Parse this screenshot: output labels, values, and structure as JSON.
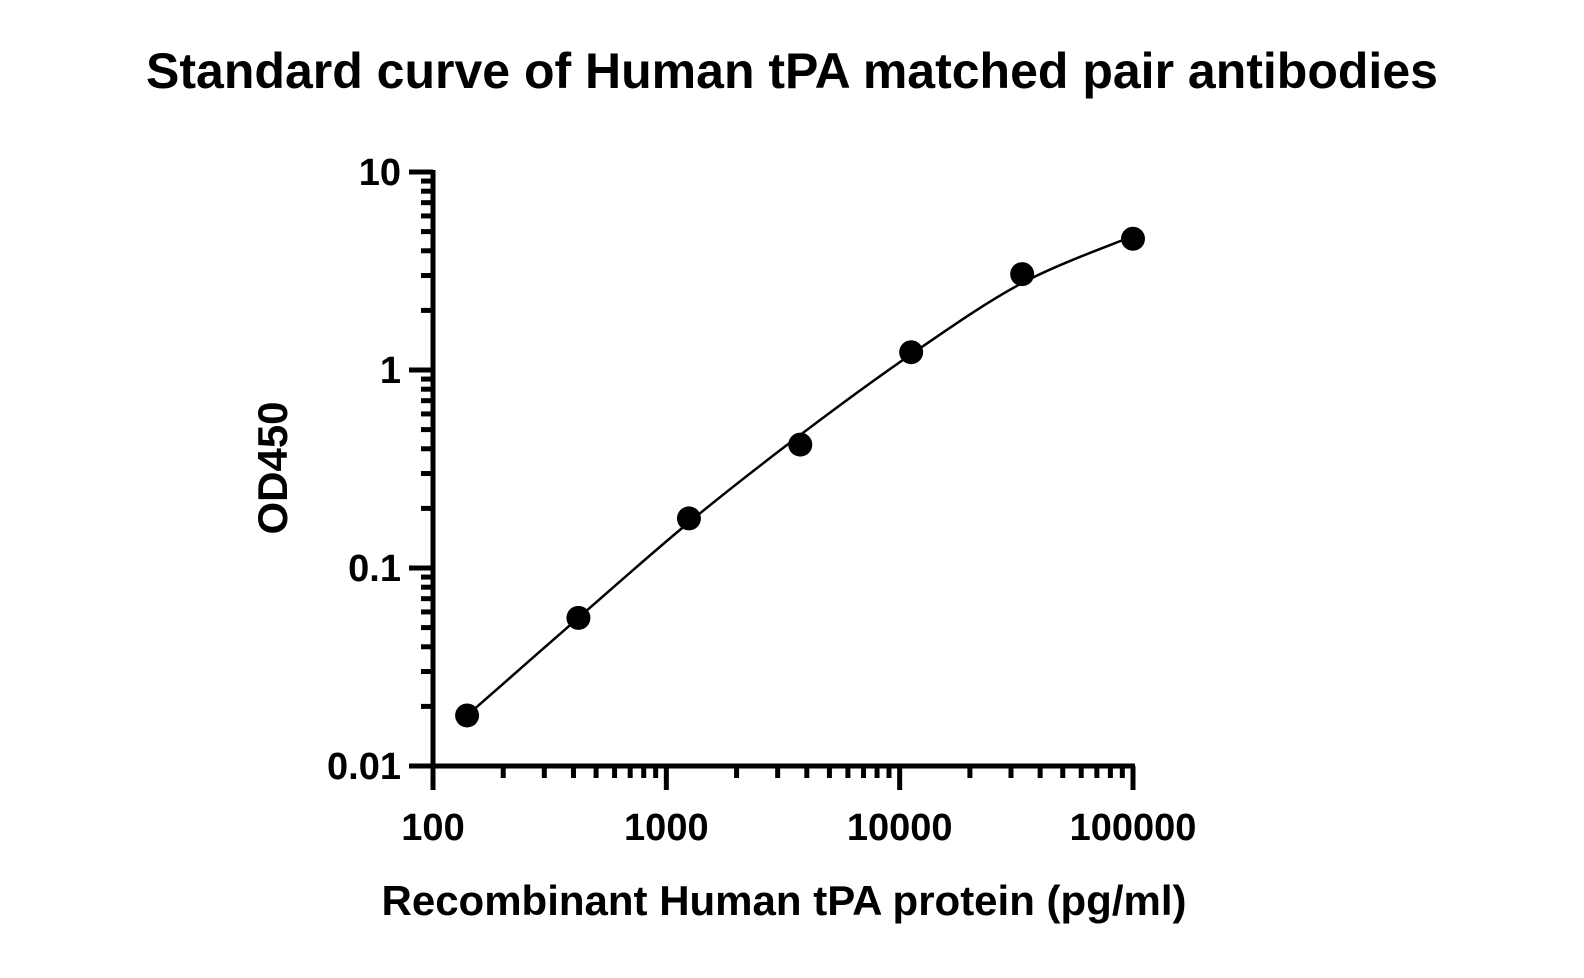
{
  "chart_data": {
    "type": "scatter",
    "title": "Standard curve of Human tPA matched pair antibodies",
    "xlabel": "Recombinant Human tPA protein (pg/ml)",
    "ylabel": "OD450",
    "x_scale": "log",
    "y_scale": "log",
    "xlim": [
      100,
      100000
    ],
    "ylim": [
      0.01,
      10
    ],
    "x_ticks": [
      "100",
      "1000",
      "10000",
      "100000"
    ],
    "y_ticks": [
      "0.01",
      "0.1",
      "1",
      "10"
    ],
    "grid": false,
    "series": [
      {
        "x": [
          140,
          420,
          1250,
          3750,
          11200,
          33500,
          100000
        ],
        "y": [
          0.018,
          0.056,
          0.178,
          0.42,
          1.23,
          3.05,
          4.6
        ]
      }
    ],
    "fit_curve": {
      "x": [
        140,
        420,
        1250,
        3750,
        11200,
        33500,
        100000
      ],
      "y": [
        0.018,
        0.056,
        0.17,
        0.47,
        1.2,
        2.75,
        4.75
      ]
    },
    "colors": {
      "points": "#000000",
      "line": "#000000"
    }
  }
}
